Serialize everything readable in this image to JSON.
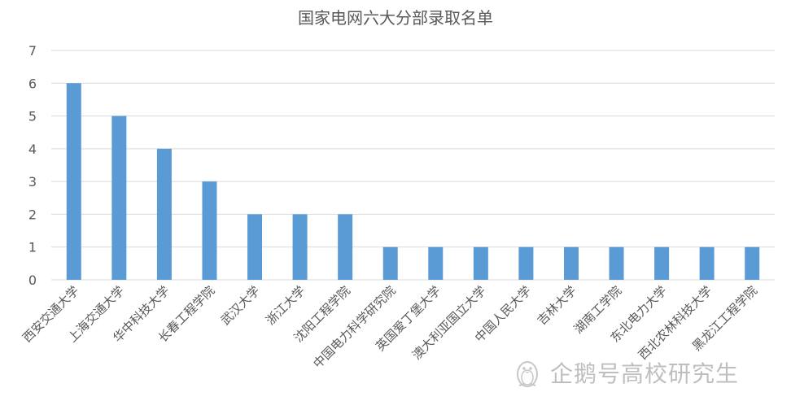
{
  "chart_data": {
    "type": "bar",
    "title": "国家电网六大分部录取名单",
    "categories": [
      "西安交通大学",
      "上海交通大学",
      "华中科技大学",
      "长春工程学院",
      "武汉大学",
      "浙江大学",
      "沈阳工程学院",
      "中国电力科学研究院",
      "英国爱丁堡大学",
      "澳大利亚国立大学",
      "中国人民大学",
      "吉林大学",
      "湖南工学院",
      "东北电力大学",
      "西北农林科技大学",
      "黑龙江工程学院"
    ],
    "values": [
      6,
      5,
      4,
      3,
      2,
      2,
      2,
      1,
      1,
      1,
      1,
      1,
      1,
      1,
      1,
      1
    ],
    "ylim": [
      0,
      7
    ],
    "yticks": [
      "0",
      "1",
      "2",
      "3",
      "4",
      "5",
      "6",
      "7"
    ],
    "xlabel": "",
    "ylabel": "",
    "grid": true,
    "legend": "none",
    "bar_color": "#5b9bd5",
    "grid_color": "#d9d9d9"
  },
  "watermark": {
    "text": "企鹅号高校研究生",
    "icon": "penguin-icon"
  }
}
